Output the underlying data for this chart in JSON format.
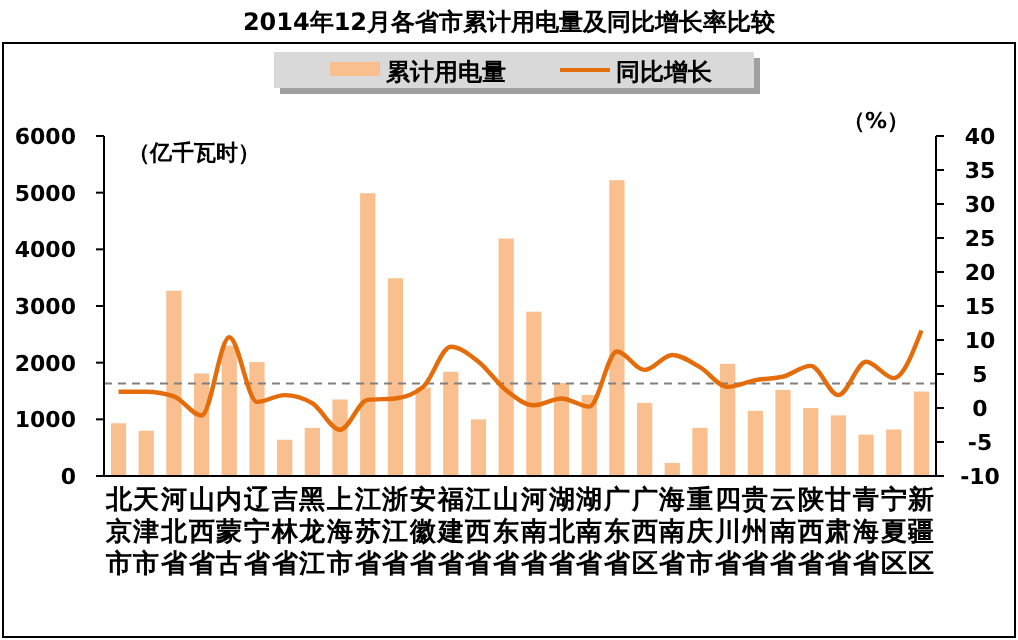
{
  "chart_data": {
    "type": "bar",
    "title": "2014年12月各省市累计用电量及同比增长率比较",
    "ylabel": "（亿千瓦时）",
    "y2label": "（%）",
    "categories": [
      "北京市",
      "天津市",
      "河北省",
      "山西省",
      "内蒙古",
      "辽宁省",
      "吉林省",
      "黑龙江",
      "上海市",
      "江苏省",
      "浙江省",
      "安徽省",
      "福建省",
      "江西省",
      "山东省",
      "河南省",
      "湖北省",
      "湖南省",
      "广东省",
      "广西区",
      "海南省",
      "重庆市",
      "四川省",
      "贵州省",
      "云南省",
      "陕西省",
      "甘肃省",
      "青海省",
      "宁夏区",
      "新疆区"
    ],
    "series": [
      {
        "name": "累计用电量",
        "color": "#f9bf8f",
        "values": [
          930,
          800,
          3270,
          1810,
          2300,
          2010,
          640,
          850,
          1350,
          4990,
          3490,
          1560,
          1840,
          1000,
          4190,
          2900,
          1640,
          1430,
          5220,
          1290,
          230,
          850,
          1980,
          1150,
          1520,
          1200,
          1070,
          730,
          820,
          1490
        ]
      },
      {
        "name": "同比增长",
        "type": "line",
        "axis": "y2",
        "color": "#e46c0a",
        "values": [
          2.4,
          2.4,
          1.7,
          -1.1,
          10.4,
          0.9,
          1.9,
          0.7,
          -3.2,
          1.2,
          1.4,
          3.1,
          9.0,
          6.8,
          2.6,
          0.4,
          1.4,
          0.2,
          8.3,
          5.6,
          7.8,
          6.0,
          3.1,
          4.1,
          4.6,
          6.2,
          1.9,
          6.8,
          4.4,
          11.4
        ]
      }
    ],
    "ylim": [
      0,
      6000
    ],
    "yticks": [
      0,
      1000,
      2000,
      3000,
      4000,
      5000,
      6000
    ],
    "y2lim": [
      -10,
      40
    ],
    "y2ticks": [
      -10,
      -5,
      0,
      5,
      10,
      15,
      20,
      25,
      30,
      35,
      40
    ],
    "ref_lines": [
      {
        "axis": "y2",
        "value": 3.6,
        "color": "#808080",
        "line_style": "dashed"
      }
    ],
    "legend": "top",
    "grid": false
  }
}
